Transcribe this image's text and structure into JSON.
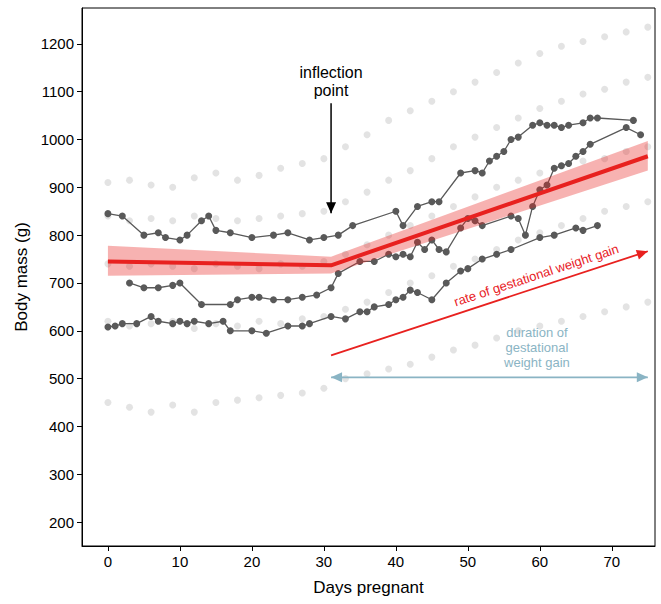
{
  "chart_data": {
    "type": "line",
    "x_label": "Days pregnant",
    "y_label": "Body mass (g)",
    "xlim": [
      -3.6,
      76
    ],
    "ylim": [
      150,
      1275
    ],
    "xticks": [
      0,
      10,
      20,
      30,
      40,
      50,
      60,
      70
    ],
    "yticks": [
      200,
      300,
      400,
      500,
      600,
      700,
      800,
      900,
      1000,
      1100,
      1200
    ],
    "grid": false,
    "annotations": [
      {
        "text": "inflection point",
        "color": "#000000"
      },
      {
        "text": "rate of gestational weight gain",
        "color": "#e8211f"
      },
      {
        "text": "duration of gestational weight gain",
        "color": "#8ab4c4"
      }
    ],
    "series": [
      {
        "type": "scatter",
        "color": "#d9d9d9",
        "marker": "circle",
        "x": [
          0,
          0,
          0,
          0,
          0,
          3,
          3,
          3,
          3,
          3,
          6,
          6,
          6,
          6,
          6,
          9,
          9,
          9,
          9,
          9,
          12,
          12,
          12,
          12,
          12,
          15,
          15,
          15,
          15,
          15,
          18,
          18,
          18,
          18,
          18,
          21,
          21,
          21,
          21,
          21,
          24,
          24,
          24,
          24,
          24,
          27,
          27,
          27,
          27,
          27,
          30,
          30,
          30,
          30,
          30,
          33,
          33,
          33,
          33,
          33,
          36,
          36,
          36,
          36,
          36,
          39,
          39,
          39,
          39,
          39,
          42,
          42,
          42,
          42,
          42,
          45,
          45,
          45,
          45,
          45,
          48,
          48,
          48,
          48,
          48,
          51,
          51,
          51,
          51,
          51,
          54,
          54,
          54,
          54,
          54,
          57,
          57,
          57,
          57,
          57,
          60,
          60,
          60,
          60,
          60,
          63,
          63,
          63,
          63,
          63,
          66,
          66,
          66,
          66,
          66,
          69,
          69,
          69,
          69,
          69,
          72,
          72,
          72,
          72,
          72,
          75,
          75,
          75,
          75,
          75
        ],
        "values": [
          450,
          620,
          740,
          840,
          910,
          440,
          610,
          735,
          830,
          915,
          430,
          615,
          740,
          835,
          905,
          445,
          620,
          735,
          830,
          900,
          430,
          605,
          730,
          840,
          920,
          450,
          615,
          740,
          835,
          930,
          455,
          610,
          735,
          830,
          915,
          460,
          620,
          730,
          835,
          925,
          465,
          615,
          740,
          840,
          940,
          470,
          625,
          735,
          845,
          950,
          480,
          630,
          745,
          850,
          960,
          500,
          645,
          760,
          870,
          985,
          510,
          660,
          780,
          890,
          1010,
          520,
          680,
          800,
          915,
          1040,
          530,
          700,
          820,
          935,
          1060,
          545,
          715,
          840,
          960,
          1080,
          560,
          735,
          860,
          985,
          1100,
          570,
          750,
          880,
          1005,
          1120,
          585,
          770,
          900,
          1025,
          1140,
          600,
          790,
          915,
          1045,
          1160,
          610,
          805,
          930,
          1065,
          1180,
          620,
          820,
          945,
          1080,
          1195,
          630,
          835,
          955,
          1095,
          1205,
          640,
          850,
          960,
          1105,
          1215,
          650,
          860,
          975,
          1120,
          1225,
          660,
          870,
          985,
          1130,
          1235
        ]
      },
      {
        "type": "line",
        "color": "#595959",
        "marker": "circle",
        "line_style": "solid",
        "x": [
          0,
          2,
          5,
          7,
          8,
          10,
          11,
          13,
          14,
          15,
          17,
          20,
          23,
          25,
          28,
          30,
          32,
          34,
          40,
          41,
          43,
          45,
          46,
          49,
          51,
          52,
          53,
          54,
          55,
          56,
          57,
          59,
          60,
          61,
          62,
          63,
          64,
          66,
          67,
          68,
          73
        ],
        "values": [
          845,
          840,
          800,
          805,
          795,
          790,
          800,
          830,
          840,
          810,
          805,
          795,
          800,
          805,
          790,
          795,
          800,
          820,
          850,
          820,
          860,
          870,
          870,
          930,
          935,
          930,
          955,
          965,
          975,
          1000,
          1005,
          1030,
          1035,
          1030,
          1030,
          1025,
          1030,
          1035,
          1045,
          1045,
          1040
        ]
      },
      {
        "type": "line",
        "color": "#595959",
        "marker": "circle",
        "line_style": "solid",
        "x": [
          3,
          5,
          7,
          9,
          10,
          13,
          17,
          18,
          20,
          21,
          23,
          25,
          27,
          29,
          31,
          32,
          35,
          37,
          39,
          40,
          41,
          42,
          43,
          44,
          45,
          46,
          47,
          49,
          50,
          51,
          52,
          56,
          57,
          58,
          59,
          60,
          61,
          62,
          63,
          64,
          65,
          66,
          67,
          72,
          74
        ],
        "values": [
          700,
          690,
          690,
          695,
          700,
          655,
          655,
          665,
          670,
          670,
          665,
          665,
          670,
          675,
          690,
          720,
          745,
          745,
          760,
          755,
          760,
          755,
          785,
          770,
          790,
          770,
          765,
          815,
          835,
          830,
          820,
          840,
          835,
          800,
          860,
          895,
          905,
          940,
          945,
          950,
          965,
          975,
          990,
          1025,
          1010
        ]
      },
      {
        "type": "line",
        "color": "#595959",
        "marker": "circle",
        "line_style": "solid",
        "x": [
          0,
          1,
          2,
          4,
          6,
          7,
          9,
          10,
          11,
          12,
          14,
          16,
          17,
          20,
          22,
          25,
          27,
          28,
          31,
          33,
          35,
          36,
          37,
          39,
          40,
          41,
          42,
          43,
          45,
          47,
          49,
          50,
          52,
          54,
          56,
          60,
          62,
          65,
          66,
          68
        ],
        "values": [
          608,
          610,
          615,
          615,
          630,
          620,
          615,
          620,
          615,
          620,
          615,
          620,
          600,
          600,
          595,
          610,
          610,
          615,
          630,
          625,
          640,
          640,
          650,
          655,
          665,
          670,
          685,
          680,
          665,
          700,
          725,
          730,
          750,
          760,
          770,
          795,
          800,
          815,
          810,
          820
        ]
      },
      {
        "type": "line",
        "color": "#e8211f",
        "marker": "none",
        "line_style": "solid",
        "x": [
          0,
          31,
          75
        ],
        "values": [
          745,
          737,
          965
        ],
        "lower": [
          715,
          720,
          935
        ],
        "upper": [
          778,
          755,
          997
        ]
      }
    ]
  }
}
